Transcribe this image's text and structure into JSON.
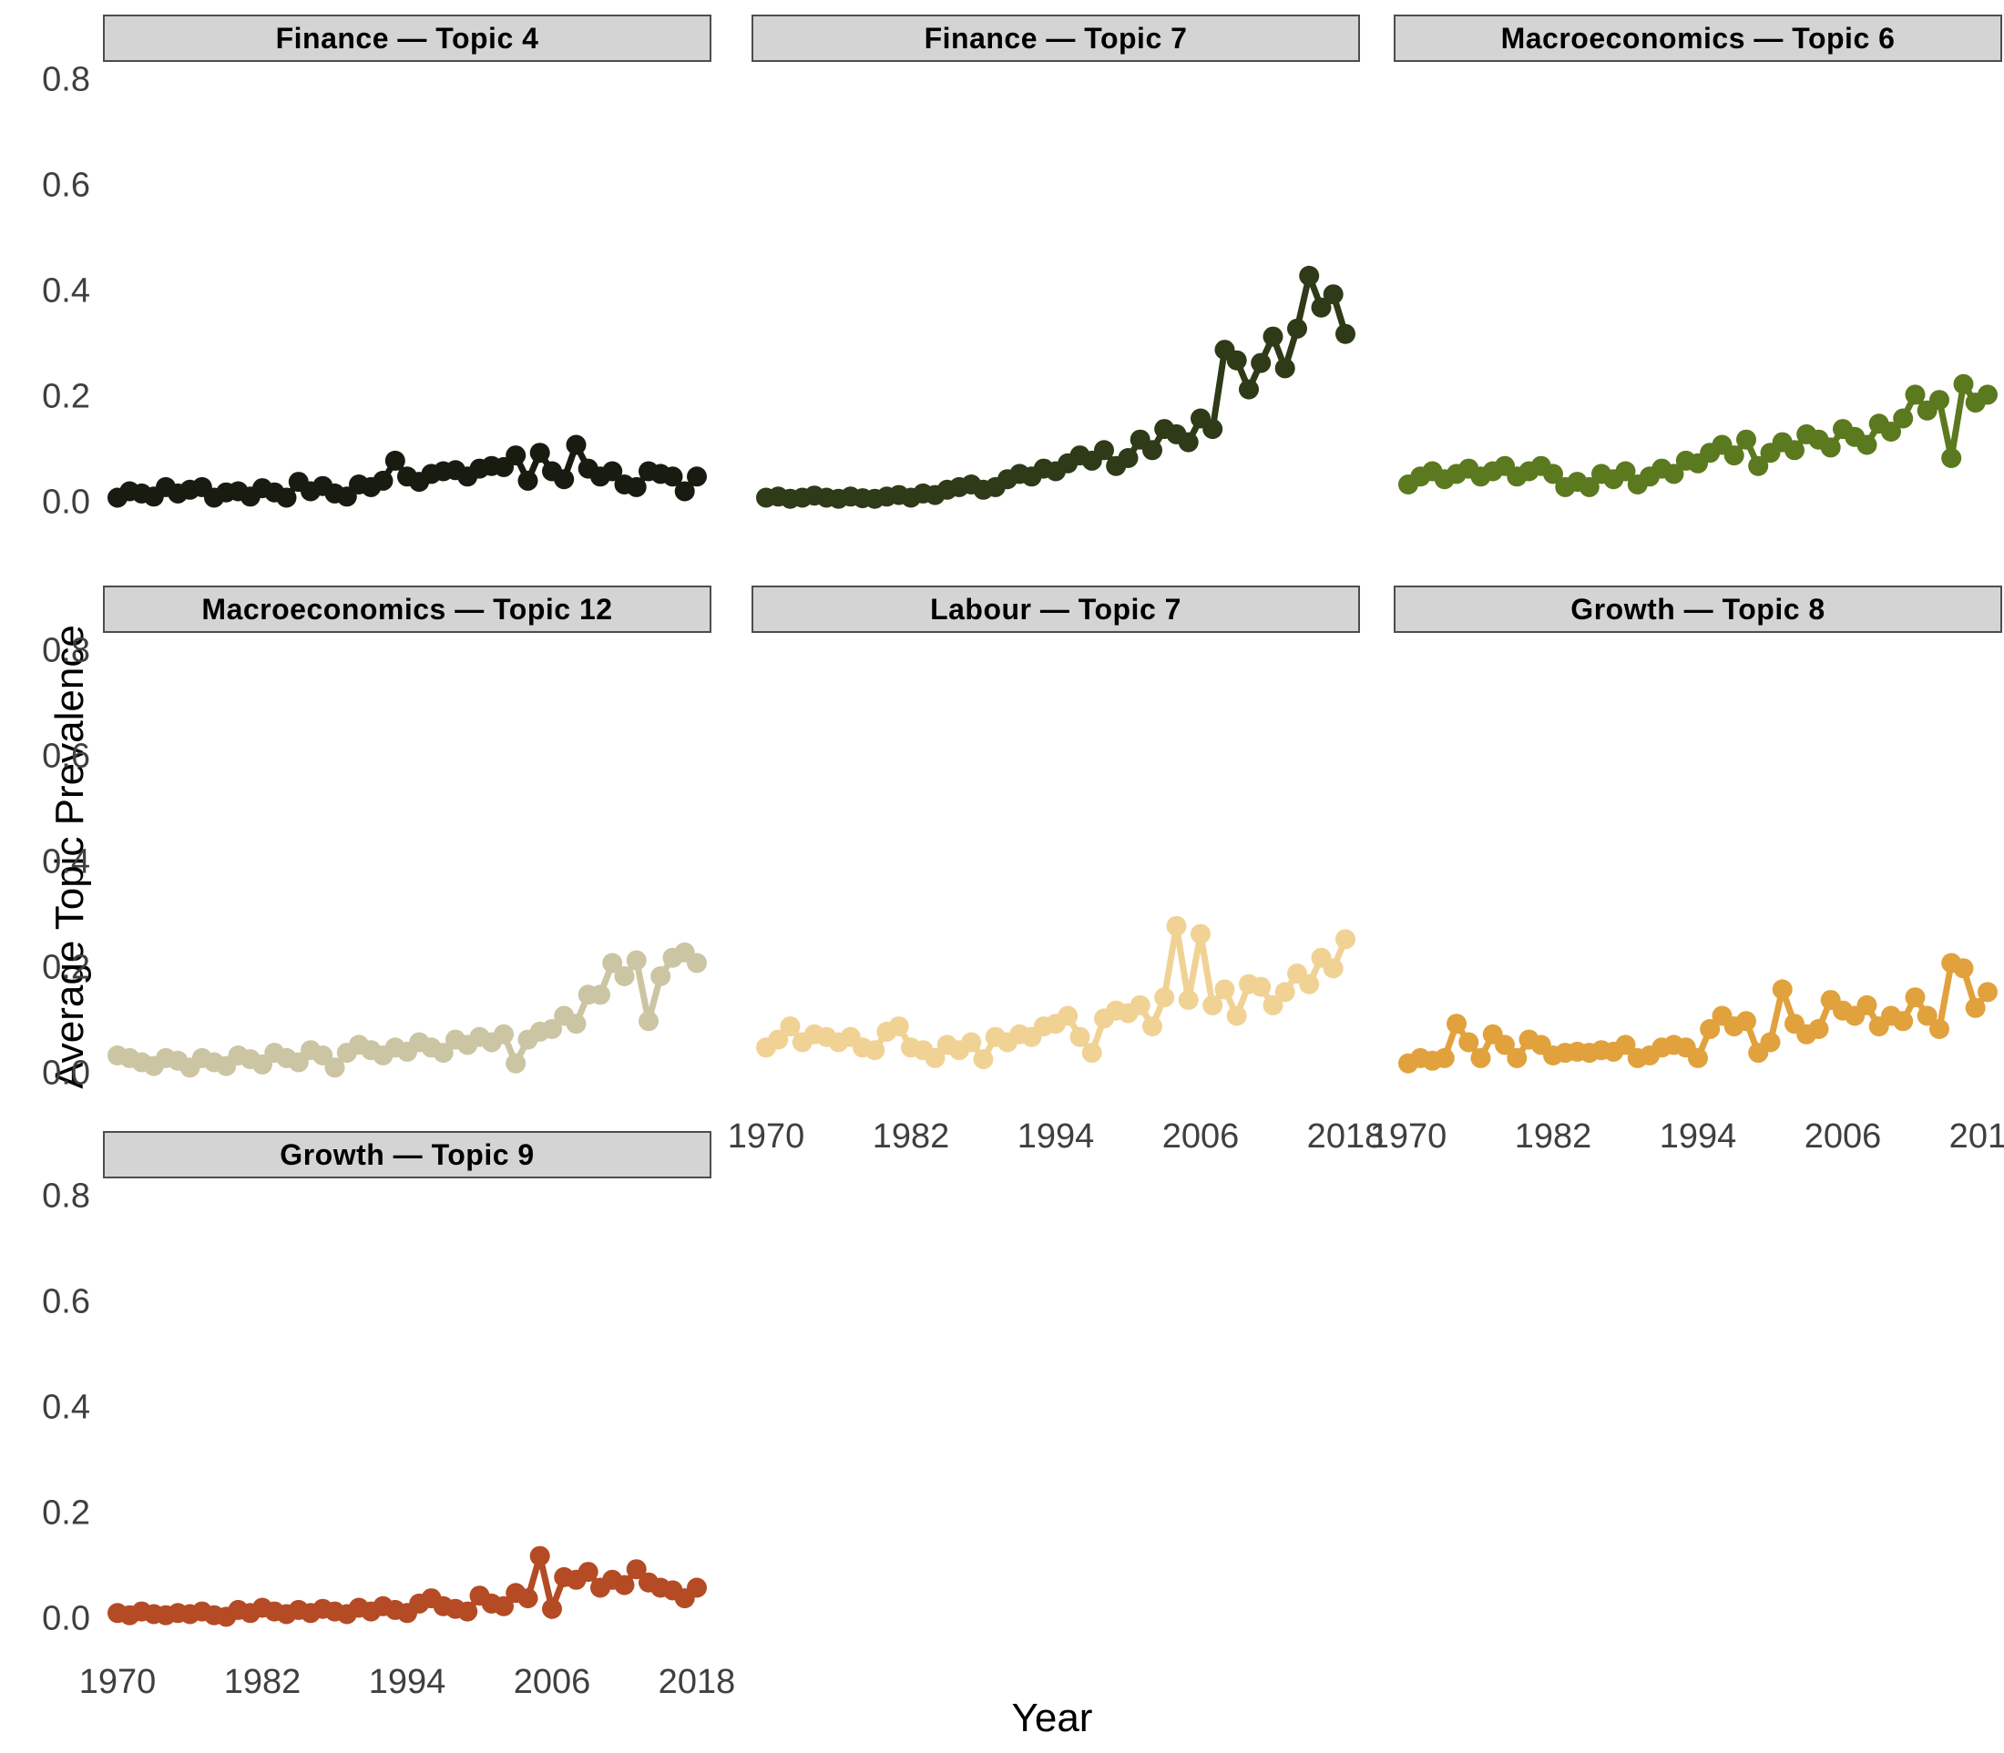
{
  "figure": {
    "y_axis_title": "Average Topic Prevalence",
    "x_axis_title": "Year"
  },
  "axes": {
    "y_tick_labels": [
      "0.0",
      "0.2",
      "0.4",
      "0.6",
      "0.8"
    ],
    "y_tick_values": [
      0.0,
      0.2,
      0.4,
      0.6,
      0.8
    ],
    "x_tick_labels": [
      "1970",
      "1982",
      "1994",
      "2006",
      "2018"
    ],
    "x_tick_values": [
      1970,
      1982,
      1994,
      2006,
      2018
    ]
  },
  "style": {
    "strip_background": "#d4d4d4",
    "strip_border": "#4d4d4d",
    "tick_label_color": "#3f3f3f"
  },
  "chart_data": {
    "type": "line",
    "title": "",
    "xlabel": "Year",
    "ylabel": "Average Topic Prevalence",
    "x_range": [
      1970,
      2018
    ],
    "ylim": [
      0.0,
      0.8
    ],
    "grid": "off",
    "legend": "none",
    "x": [
      1970,
      1971,
      1972,
      1973,
      1974,
      1975,
      1976,
      1977,
      1978,
      1979,
      1980,
      1981,
      1982,
      1983,
      1984,
      1985,
      1986,
      1987,
      1988,
      1989,
      1990,
      1991,
      1992,
      1993,
      1994,
      1995,
      1996,
      1997,
      1998,
      1999,
      2000,
      2001,
      2002,
      2003,
      2004,
      2005,
      2006,
      2007,
      2008,
      2009,
      2010,
      2011,
      2012,
      2013,
      2014,
      2015,
      2016,
      2017,
      2018
    ],
    "panels": [
      {
        "title": "Finance — Topic 4",
        "color": "#181c10",
        "row": 0,
        "col": 0,
        "show_x_labels": false,
        "values": [
          0.01,
          0.022,
          0.018,
          0.012,
          0.03,
          0.018,
          0.025,
          0.03,
          0.01,
          0.02,
          0.022,
          0.012,
          0.028,
          0.02,
          0.01,
          0.04,
          0.022,
          0.032,
          0.018,
          0.012,
          0.035,
          0.03,
          0.042,
          0.08,
          0.05,
          0.04,
          0.055,
          0.06,
          0.062,
          0.05,
          0.065,
          0.07,
          0.068,
          0.09,
          0.042,
          0.095,
          0.06,
          0.045,
          0.11,
          0.065,
          0.05,
          0.06,
          0.035,
          0.03,
          0.06,
          0.055,
          0.05,
          0.022,
          0.05
        ]
      },
      {
        "title": "Finance — Topic 7",
        "color": "#2e3a18",
        "row": 0,
        "col": 1,
        "show_x_labels": false,
        "values": [
          0.01,
          0.012,
          0.008,
          0.01,
          0.014,
          0.01,
          0.008,
          0.012,
          0.009,
          0.008,
          0.012,
          0.015,
          0.01,
          0.018,
          0.015,
          0.025,
          0.03,
          0.035,
          0.025,
          0.03,
          0.045,
          0.055,
          0.05,
          0.065,
          0.06,
          0.075,
          0.09,
          0.08,
          0.1,
          0.07,
          0.085,
          0.12,
          0.1,
          0.14,
          0.13,
          0.115,
          0.16,
          0.14,
          0.29,
          0.27,
          0.215,
          0.265,
          0.315,
          0.255,
          0.33,
          0.43,
          0.37,
          0.395,
          0.32
        ]
      },
      {
        "title": "Macroeconomics — Topic 6",
        "color": "#5b791e",
        "row": 0,
        "col": 2,
        "show_x_labels": false,
        "values": [
          0.035,
          0.05,
          0.06,
          0.045,
          0.055,
          0.065,
          0.05,
          0.06,
          0.07,
          0.05,
          0.06,
          0.07,
          0.055,
          0.03,
          0.04,
          0.03,
          0.055,
          0.045,
          0.06,
          0.035,
          0.05,
          0.065,
          0.055,
          0.08,
          0.075,
          0.095,
          0.11,
          0.09,
          0.12,
          0.07,
          0.095,
          0.115,
          0.1,
          0.13,
          0.12,
          0.105,
          0.14,
          0.125,
          0.11,
          0.15,
          0.135,
          0.16,
          0.205,
          0.175,
          0.195,
          0.085,
          0.225,
          0.19,
          0.205
        ]
      },
      {
        "title": "Macroeconomics — Topic 12",
        "color": "#ccc5a3",
        "row": 1,
        "col": 0,
        "show_x_labels": false,
        "values": [
          0.035,
          0.03,
          0.022,
          0.015,
          0.03,
          0.025,
          0.012,
          0.03,
          0.022,
          0.015,
          0.035,
          0.028,
          0.018,
          0.04,
          0.03,
          0.022,
          0.045,
          0.035,
          0.012,
          0.04,
          0.055,
          0.045,
          0.035,
          0.05,
          0.042,
          0.06,
          0.05,
          0.04,
          0.065,
          0.055,
          0.07,
          0.06,
          0.075,
          0.02,
          0.065,
          0.08,
          0.085,
          0.11,
          0.095,
          0.15,
          0.15,
          0.21,
          0.185,
          0.215,
          0.1,
          0.185,
          0.22,
          0.23,
          0.21
        ]
      },
      {
        "title": "Labour — Topic 7",
        "color": "#f1d295",
        "row": 1,
        "col": 1,
        "show_x_labels": true,
        "values": [
          0.05,
          0.065,
          0.09,
          0.06,
          0.075,
          0.07,
          0.06,
          0.07,
          0.05,
          0.045,
          0.08,
          0.09,
          0.05,
          0.045,
          0.03,
          0.055,
          0.045,
          0.06,
          0.028,
          0.07,
          0.06,
          0.075,
          0.07,
          0.09,
          0.095,
          0.11,
          0.07,
          0.04,
          0.105,
          0.12,
          0.115,
          0.13,
          0.09,
          0.145,
          0.28,
          0.14,
          0.265,
          0.13,
          0.16,
          0.11,
          0.17,
          0.165,
          0.13,
          0.155,
          0.19,
          0.17,
          0.22,
          0.2,
          0.255
        ]
      },
      {
        "title": "Growth — Topic 8",
        "color": "#e1a13d",
        "row": 1,
        "col": 2,
        "show_x_labels": true,
        "values": [
          0.02,
          0.03,
          0.025,
          0.03,
          0.095,
          0.06,
          0.03,
          0.075,
          0.055,
          0.03,
          0.065,
          0.055,
          0.035,
          0.04,
          0.042,
          0.04,
          0.045,
          0.042,
          0.055,
          0.03,
          0.035,
          0.05,
          0.055,
          0.05,
          0.03,
          0.085,
          0.11,
          0.09,
          0.1,
          0.04,
          0.06,
          0.16,
          0.095,
          0.075,
          0.085,
          0.14,
          0.12,
          0.11,
          0.13,
          0.09,
          0.11,
          0.1,
          0.145,
          0.11,
          0.085,
          0.21,
          0.2,
          0.125,
          0.155
        ]
      },
      {
        "title": "Growth — Topic 9",
        "color": "#b44b24",
        "row": 2,
        "col": 0,
        "show_x_labels": true,
        "values": [
          0.012,
          0.008,
          0.015,
          0.01,
          0.008,
          0.012,
          0.01,
          0.015,
          0.008,
          0.005,
          0.018,
          0.012,
          0.022,
          0.015,
          0.01,
          0.018,
          0.012,
          0.02,
          0.015,
          0.01,
          0.022,
          0.015,
          0.025,
          0.018,
          0.012,
          0.03,
          0.04,
          0.025,
          0.02,
          0.015,
          0.045,
          0.03,
          0.025,
          0.05,
          0.04,
          0.12,
          0.02,
          0.08,
          0.075,
          0.09,
          0.06,
          0.075,
          0.065,
          0.095,
          0.07,
          0.06,
          0.055,
          0.04,
          0.06
        ]
      }
    ]
  }
}
